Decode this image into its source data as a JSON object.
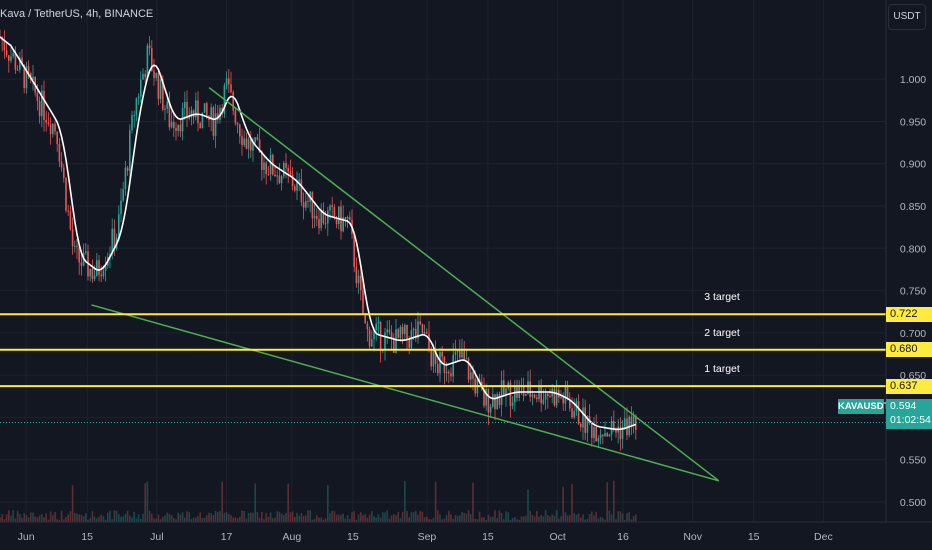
{
  "legend": {
    "title": "Kava / TetherUS, 4h, BINANCE"
  },
  "currency": "USDT",
  "symbol": "KAVAUSDT",
  "current_price": "0.594",
  "countdown": "01:02:54",
  "targets": [
    {
      "label": "3 target",
      "price": 0.722,
      "price_text": "0.722"
    },
    {
      "label": "2 target",
      "price": 0.68,
      "price_text": "0.680"
    },
    {
      "label": "1 target",
      "price": 0.637,
      "price_text": "0.637"
    }
  ],
  "colors": {
    "background": "#131722",
    "up": "#26a69a",
    "down": "#ef5350",
    "ma": "#ffffff",
    "wedge": "#4caf50",
    "target": "#ffeb3b"
  },
  "chart_data": {
    "type": "candlestick",
    "yticks": [
      "1.000",
      "0.950",
      "0.900",
      "0.850",
      "0.800",
      "0.750",
      "0.700",
      "0.650",
      "0.600",
      "0.550",
      "0.500"
    ],
    "xticks": [
      "Jun",
      "15",
      "Jul",
      "17",
      "Aug",
      "15",
      "Sep",
      "15",
      "Oct",
      "16",
      "Nov",
      "15",
      "Dec"
    ],
    "ylim": [
      0.455,
      1.07
    ],
    "price_path": [
      {
        "date": "2021-05-26",
        "close": 1.05
      },
      {
        "date": "2021-06-01",
        "close": 1.0
      },
      {
        "date": "2021-06-08",
        "close": 0.94
      },
      {
        "date": "2021-06-12",
        "close": 0.79
      },
      {
        "date": "2021-06-17",
        "close": 0.77
      },
      {
        "date": "2021-06-22",
        "close": 0.82
      },
      {
        "date": "2021-06-26",
        "close": 0.97
      },
      {
        "date": "2021-06-29",
        "close": 1.03
      },
      {
        "date": "2021-07-04",
        "close": 0.95
      },
      {
        "date": "2021-07-09",
        "close": 0.96
      },
      {
        "date": "2021-07-14",
        "close": 0.95
      },
      {
        "date": "2021-07-17",
        "close": 0.99
      },
      {
        "date": "2021-07-21",
        "close": 0.93
      },
      {
        "date": "2021-07-26",
        "close": 0.9
      },
      {
        "date": "2021-08-01",
        "close": 0.88
      },
      {
        "date": "2021-08-07",
        "close": 0.84
      },
      {
        "date": "2021-08-14",
        "close": 0.83
      },
      {
        "date": "2021-08-18",
        "close": 0.7
      },
      {
        "date": "2021-08-25",
        "close": 0.69
      },
      {
        "date": "2021-08-31",
        "close": 0.7
      },
      {
        "date": "2021-09-03",
        "close": 0.66
      },
      {
        "date": "2021-09-09",
        "close": 0.67
      },
      {
        "date": "2021-09-14",
        "close": 0.62
      },
      {
        "date": "2021-09-20",
        "close": 0.63
      },
      {
        "date": "2021-09-29",
        "close": 0.63
      },
      {
        "date": "2021-10-03",
        "close": 0.62
      },
      {
        "date": "2021-10-08",
        "close": 0.59
      },
      {
        "date": "2021-10-14",
        "close": 0.585
      },
      {
        "date": "2021-10-19",
        "close": 0.594
      }
    ],
    "wedge": {
      "upper": [
        {
          "date": "2021-07-13",
          "price": 0.99
        },
        {
          "date": "2021-11-07",
          "price": 0.525
        }
      ],
      "lower": [
        {
          "date": "2021-06-16",
          "price": 0.733
        },
        {
          "date": "2021-11-07",
          "price": 0.525
        }
      ]
    },
    "target_lines": [
      0.722,
      0.68,
      0.637
    ],
    "last_price": 0.594
  }
}
